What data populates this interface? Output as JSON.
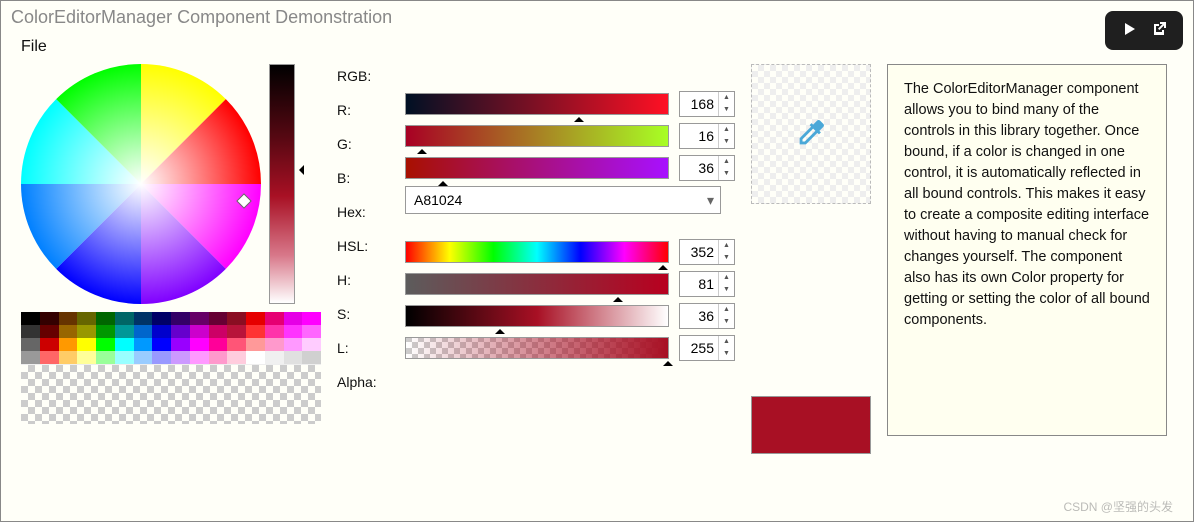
{
  "window": {
    "title": "ColorEditorManager Component Demonstration"
  },
  "menu": {
    "file": "File"
  },
  "rgb": {
    "header": "RGB:",
    "r_label": "R:",
    "r_value": 168,
    "r_gradient_from": "#001024",
    "r_gradient_to": "#ff1024",
    "r_marker_pct": 66,
    "g_label": "G:",
    "g_value": 16,
    "g_gradient_from": "#a80024",
    "g_gradient_to": "#a8ff24",
    "g_marker_pct": 6,
    "b_label": "B:",
    "b_value": 36,
    "b_gradient_from": "#a81000",
    "b_gradient_to": "#a810ff",
    "b_marker_pct": 14
  },
  "hex": {
    "label": "Hex:",
    "value": "A81024"
  },
  "hsl": {
    "header": "HSL:",
    "h_label": "H:",
    "h_value": 352,
    "h_marker_pct": 98,
    "s_label": "S:",
    "s_value": 81,
    "s_gradient_from": "#5c5c5c",
    "s_gradient_to": "#b8001f",
    "s_marker_pct": 81,
    "l_label": "L:",
    "l_value": 36,
    "l_marker_pct": 36,
    "a_label": "Alpha:",
    "a_value": 255,
    "a_marker_pct": 100
  },
  "current_color": "#A81024",
  "description": "The ColorEditorManager component allows you to bind many of the controls in this library together. Once bound, if a color is changed in one control, it is automatically reflected in all bound controls. This makes it easy to create a composite editing interface without having to manual check for changes yourself. The component also has its own Color property for getting or setting the color of all bound components.",
  "palette_colors": {
    "row1": [
      "#000000",
      "#330000",
      "#663300",
      "#666600",
      "#006600",
      "#006666",
      "#003366",
      "#000066",
      "#330066",
      "#660066",
      "#660033",
      "#8a0e22",
      "#e60000",
      "#e60073",
      "#e600e6",
      "#ff00ff"
    ],
    "row2": [
      "#333333",
      "#660000",
      "#996600",
      "#999900",
      "#009900",
      "#009999",
      "#0066cc",
      "#0000cc",
      "#6600cc",
      "#cc00cc",
      "#cc0066",
      "#b8143a",
      "#ff3333",
      "#ff33aa",
      "#ff33ff",
      "#ff66ff"
    ],
    "row3": [
      "#666666",
      "#cc0000",
      "#ff9900",
      "#ffff00",
      "#00ff00",
      "#00ffff",
      "#0099ff",
      "#0000ff",
      "#9900ff",
      "#ff00ff",
      "#ff0099",
      "#ff5577",
      "#ff9999",
      "#ff99cc",
      "#ff99ff",
      "#ffccff"
    ],
    "row4": [
      "#999999",
      "#ff6666",
      "#ffcc66",
      "#ffff99",
      "#99ff99",
      "#99ffff",
      "#99ccff",
      "#9999ff",
      "#cc99ff",
      "#ff99ff",
      "#ff99cc",
      "#ffccdd",
      "#ffffff",
      "#f0f0f0",
      "#e0e0e0",
      "#d0d0d0"
    ]
  },
  "watermark": "CSDN @坚强的头发"
}
